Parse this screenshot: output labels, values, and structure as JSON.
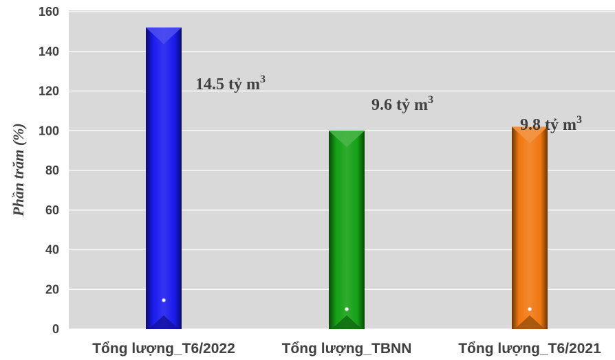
{
  "chart_data": {
    "type": "bar",
    "ylabel": "Phần trăm (%)",
    "ylim": [
      0,
      160
    ],
    "yticks": [
      0,
      20,
      40,
      60,
      80,
      100,
      120,
      140,
      160
    ],
    "grid": true,
    "legend": "none",
    "categories": [
      "Tổng lượng_T6/2022",
      "Tổng lượng_TBNN",
      "Tổng lượng_T6/2021"
    ],
    "values": [
      152,
      100,
      102
    ],
    "data_labels": [
      "14.5 tỷ m",
      "9.6 tỷ m",
      "9.8 tỷ m"
    ],
    "data_label_superscript": "3",
    "colors": [
      "#1a1aee",
      "#14a014",
      "#f07810"
    ],
    "plot_background": "#d9d9d9"
  }
}
